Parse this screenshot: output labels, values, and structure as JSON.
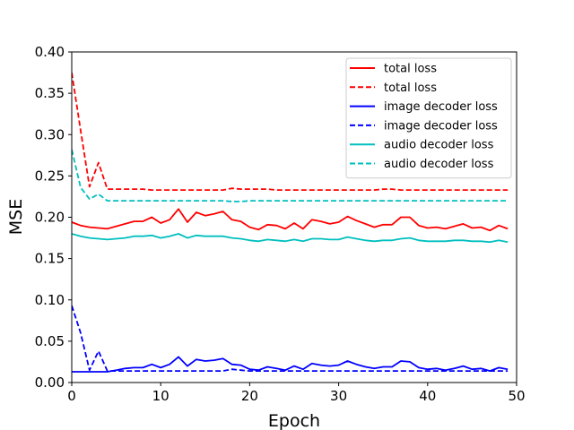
{
  "chart_data": {
    "type": "line",
    "title": "",
    "xlabel": "Epoch",
    "ylabel": "MSE",
    "xlim": [
      0,
      50
    ],
    "ylim": [
      0,
      0.4
    ],
    "xticks": [
      "0",
      "10",
      "20",
      "30",
      "40",
      "50"
    ],
    "yticks": [
      "0.00",
      "0.05",
      "0.10",
      "0.15",
      "0.20",
      "0.25",
      "0.30",
      "0.35",
      "0.40"
    ],
    "grid": false,
    "legend_position": "top-right",
    "x": [
      0,
      1,
      2,
      3,
      4,
      5,
      6,
      7,
      8,
      9,
      10,
      11,
      12,
      13,
      14,
      15,
      16,
      17,
      18,
      19,
      20,
      21,
      22,
      23,
      24,
      25,
      26,
      27,
      28,
      29,
      30,
      31,
      32,
      33,
      34,
      35,
      36,
      37,
      38,
      39,
      40,
      41,
      42,
      43,
      44,
      45,
      46,
      47,
      48,
      49
    ],
    "series": [
      {
        "name": "total loss",
        "color": "#ff0000",
        "dashed": false,
        "values": [
          0.194,
          0.19,
          0.188,
          0.187,
          0.186,
          0.189,
          0.192,
          0.195,
          0.195,
          0.2,
          0.193,
          0.197,
          0.21,
          0.194,
          0.206,
          0.202,
          0.204,
          0.207,
          0.197,
          0.195,
          0.188,
          0.185,
          0.191,
          0.19,
          0.186,
          0.193,
          0.186,
          0.197,
          0.195,
          0.192,
          0.194,
          0.201,
          0.196,
          0.192,
          0.188,
          0.191,
          0.191,
          0.2,
          0.2,
          0.19,
          0.187,
          0.188,
          0.186,
          0.189,
          0.192,
          0.187,
          0.188,
          0.184,
          0.19,
          0.186
        ]
      },
      {
        "name": "total loss",
        "color": "#ff0000",
        "dashed": true,
        "values": [
          0.375,
          0.305,
          0.237,
          0.266,
          0.234,
          0.234,
          0.234,
          0.234,
          0.234,
          0.233,
          0.233,
          0.233,
          0.233,
          0.233,
          0.233,
          0.233,
          0.233,
          0.233,
          0.235,
          0.234,
          0.234,
          0.234,
          0.234,
          0.233,
          0.233,
          0.233,
          0.233,
          0.233,
          0.233,
          0.233,
          0.233,
          0.233,
          0.233,
          0.233,
          0.233,
          0.234,
          0.234,
          0.233,
          0.233,
          0.233,
          0.233,
          0.233,
          0.233,
          0.233,
          0.233,
          0.233,
          0.233,
          0.233,
          0.233,
          0.233
        ]
      },
      {
        "name": "image decoder loss",
        "color": "#0000ff",
        "dashed": false,
        "values": [
          0.013,
          0.013,
          0.013,
          0.013,
          0.013,
          0.015,
          0.017,
          0.018,
          0.018,
          0.022,
          0.018,
          0.022,
          0.031,
          0.02,
          0.028,
          0.026,
          0.027,
          0.029,
          0.022,
          0.021,
          0.016,
          0.015,
          0.019,
          0.017,
          0.015,
          0.02,
          0.016,
          0.023,
          0.021,
          0.02,
          0.021,
          0.026,
          0.022,
          0.019,
          0.017,
          0.019,
          0.019,
          0.026,
          0.025,
          0.018,
          0.016,
          0.017,
          0.015,
          0.017,
          0.02,
          0.016,
          0.017,
          0.014,
          0.018,
          0.016
        ]
      },
      {
        "name": "image decoder loss",
        "color": "#0000ff",
        "dashed": true,
        "values": [
          0.093,
          0.06,
          0.015,
          0.038,
          0.014,
          0.014,
          0.014,
          0.014,
          0.014,
          0.014,
          0.014,
          0.014,
          0.014,
          0.014,
          0.014,
          0.014,
          0.014,
          0.014,
          0.016,
          0.015,
          0.014,
          0.014,
          0.014,
          0.014,
          0.014,
          0.014,
          0.014,
          0.014,
          0.014,
          0.014,
          0.014,
          0.014,
          0.014,
          0.014,
          0.014,
          0.014,
          0.014,
          0.014,
          0.014,
          0.014,
          0.014,
          0.014,
          0.014,
          0.014,
          0.014,
          0.014,
          0.014,
          0.014,
          0.014,
          0.014
        ]
      },
      {
        "name": "audio decoder loss",
        "color": "#00bfbf",
        "dashed": false,
        "values": [
          0.18,
          0.177,
          0.175,
          0.174,
          0.173,
          0.174,
          0.175,
          0.177,
          0.177,
          0.178,
          0.175,
          0.177,
          0.18,
          0.175,
          0.178,
          0.177,
          0.177,
          0.177,
          0.175,
          0.174,
          0.172,
          0.171,
          0.173,
          0.172,
          0.171,
          0.173,
          0.171,
          0.174,
          0.174,
          0.173,
          0.173,
          0.176,
          0.174,
          0.172,
          0.171,
          0.172,
          0.172,
          0.174,
          0.175,
          0.172,
          0.171,
          0.171,
          0.171,
          0.172,
          0.172,
          0.171,
          0.171,
          0.17,
          0.172,
          0.17
        ]
      },
      {
        "name": "audio decoder loss",
        "color": "#00bfbf",
        "dashed": true,
        "values": [
          0.282,
          0.236,
          0.222,
          0.228,
          0.22,
          0.22,
          0.22,
          0.22,
          0.22,
          0.22,
          0.22,
          0.22,
          0.22,
          0.22,
          0.22,
          0.22,
          0.22,
          0.22,
          0.219,
          0.219,
          0.22,
          0.22,
          0.22,
          0.22,
          0.22,
          0.22,
          0.22,
          0.22,
          0.22,
          0.22,
          0.22,
          0.22,
          0.22,
          0.22,
          0.22,
          0.22,
          0.22,
          0.22,
          0.22,
          0.22,
          0.22,
          0.22,
          0.22,
          0.22,
          0.22,
          0.22,
          0.22,
          0.22,
          0.22,
          0.22
        ]
      }
    ]
  }
}
